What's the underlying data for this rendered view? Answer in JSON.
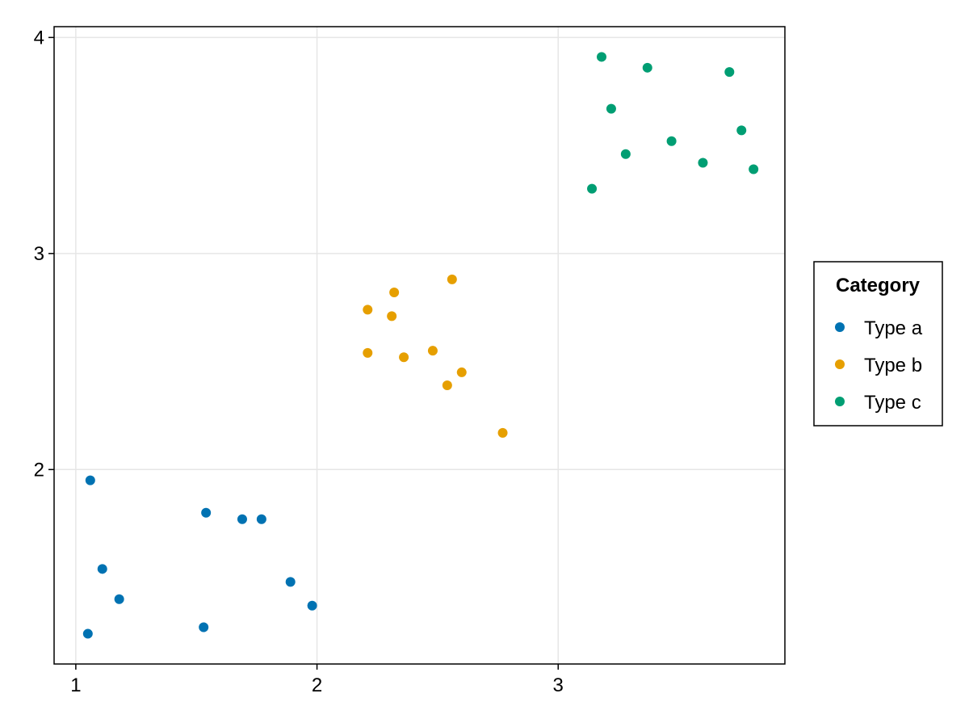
{
  "chart_data": {
    "type": "scatter",
    "title": "",
    "xlabel": "",
    "ylabel": "",
    "xlim": [
      0.91,
      3.94
    ],
    "ylim": [
      1.1,
      4.05
    ],
    "x_ticks": [
      1,
      2,
      3
    ],
    "y_ticks": [
      2,
      3,
      4
    ],
    "grid": true,
    "legend_position": "right",
    "legend": {
      "title": "Category"
    },
    "series": [
      {
        "name": "Type a",
        "color": "#0072B2",
        "points": [
          [
            1.06,
            1.95
          ],
          [
            1.54,
            1.8
          ],
          [
            1.69,
            1.77
          ],
          [
            1.77,
            1.77
          ],
          [
            1.11,
            1.54
          ],
          [
            1.89,
            1.48
          ],
          [
            1.18,
            1.4
          ],
          [
            1.98,
            1.37
          ],
          [
            1.53,
            1.27
          ],
          [
            1.05,
            1.24
          ]
        ]
      },
      {
        "name": "Type b",
        "color": "#E69F00",
        "points": [
          [
            2.56,
            2.88
          ],
          [
            2.32,
            2.82
          ],
          [
            2.21,
            2.74
          ],
          [
            2.31,
            2.71
          ],
          [
            2.21,
            2.54
          ],
          [
            2.36,
            2.52
          ],
          [
            2.48,
            2.55
          ],
          [
            2.6,
            2.45
          ],
          [
            2.54,
            2.39
          ],
          [
            2.77,
            2.17
          ]
        ]
      },
      {
        "name": "Type c",
        "color": "#009E73",
        "points": [
          [
            3.18,
            3.91
          ],
          [
            3.37,
            3.86
          ],
          [
            3.71,
            3.84
          ],
          [
            3.22,
            3.67
          ],
          [
            3.76,
            3.57
          ],
          [
            3.47,
            3.52
          ],
          [
            3.28,
            3.46
          ],
          [
            3.6,
            3.42
          ],
          [
            3.81,
            3.39
          ],
          [
            3.14,
            3.3
          ]
        ]
      }
    ]
  }
}
